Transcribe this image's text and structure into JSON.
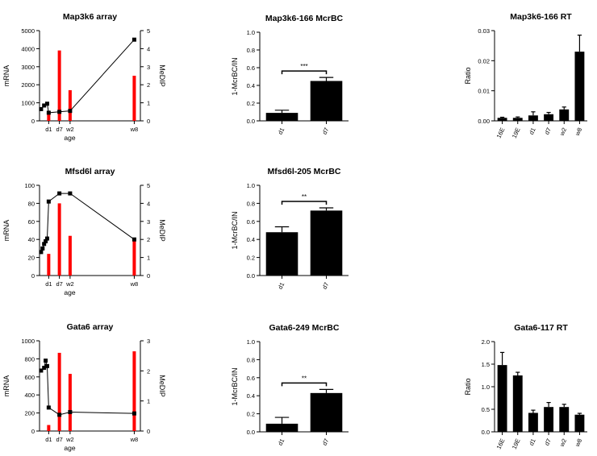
{
  "colors": {
    "bar": "#ff0000",
    "mark": "#000000",
    "line": "#000000"
  },
  "chart_data": [
    {
      "type": "bar+line",
      "title": "Map3k6 array",
      "xlabel": "age",
      "ylabel": "mRNA",
      "y2label": "MeDIP",
      "ylim": [
        0,
        5000
      ],
      "y2lim": [
        0,
        5
      ],
      "yticks": [
        "0",
        "1000",
        "2000",
        "3000",
        "4000",
        "5000"
      ],
      "y2ticks": [
        "0",
        "1",
        "2",
        "3",
        "4",
        "5"
      ],
      "xlim": [
        -6,
        60
      ],
      "xtick_values": [
        0,
        7,
        14,
        56
      ],
      "xtick_labels": [
        "d1",
        "d7",
        "w2",
        "w8"
      ],
      "bars": {
        "x": [
          0,
          7,
          14,
          56
        ],
        "values": [
          0.4,
          3.9,
          1.7,
          2.5
        ]
      },
      "line": {
        "x": [
          -5,
          -3,
          -1,
          0,
          7,
          14,
          56
        ],
        "values": [
          650,
          850,
          950,
          450,
          500,
          550,
          4500
        ]
      }
    },
    {
      "type": "bar",
      "title": "Map3k6-166 McrBC",
      "ylabel": "1-McrBC/IN",
      "ylim": [
        0,
        1.0
      ],
      "yticks": [
        "0.0",
        "0.2",
        "0.4",
        "0.6",
        "0.8",
        "1.0"
      ],
      "categories": [
        "d1",
        "d7"
      ],
      "values": [
        0.09,
        0.45
      ],
      "errors": [
        0.03,
        0.04
      ],
      "significance": "***"
    },
    {
      "type": "bar",
      "title": "Map3k6-166 RT",
      "ylabel": "Ratio",
      "ylim": [
        0,
        0.03
      ],
      "yticks": [
        "0.00",
        "0.01",
        "0.02",
        "0.03"
      ],
      "categories": [
        "16E",
        "19E",
        "d1",
        "d7",
        "w2",
        "w8"
      ],
      "values": [
        0.001,
        0.001,
        0.0018,
        0.0022,
        0.0038,
        0.023
      ],
      "errors": [
        0.0002,
        0.0003,
        0.0012,
        0.0006,
        0.0008,
        0.0055
      ]
    },
    {
      "type": "bar+line",
      "title": "Mfsd6l array",
      "xlabel": "age",
      "ylabel": "mRNA",
      "y2label": "MeDIP",
      "ylim": [
        0,
        100
      ],
      "y2lim": [
        0,
        5
      ],
      "yticks": [
        "0",
        "20",
        "40",
        "60",
        "80",
        "100"
      ],
      "y2ticks": [
        "0",
        "1",
        "2",
        "3",
        "4",
        "5"
      ],
      "xlim": [
        -6,
        60
      ],
      "xtick_values": [
        0,
        7,
        14,
        56
      ],
      "xtick_labels": [
        "d1",
        "d7",
        "w2",
        "w8"
      ],
      "bars": {
        "x": [
          0,
          7,
          14,
          56
        ],
        "values": [
          1.2,
          4.0,
          2.2,
          2.0
        ]
      },
      "line": {
        "x": [
          -5,
          -4,
          -3,
          -2,
          -1,
          0,
          7,
          14,
          56
        ],
        "values": [
          26,
          30,
          35,
          38,
          41,
          82,
          91,
          91,
          40
        ]
      }
    },
    {
      "type": "bar",
      "title": "Mfsd6l-205 McrBC",
      "ylabel": "1-McrBC/IN",
      "ylim": [
        0,
        1.0
      ],
      "yticks": [
        "0.0",
        "0.2",
        "0.4",
        "0.6",
        "0.8",
        "1.0"
      ],
      "categories": [
        "d1",
        "d7"
      ],
      "values": [
        0.48,
        0.72
      ],
      "errors": [
        0.06,
        0.03
      ],
      "significance": "**"
    },
    {
      "type": "bar+line",
      "title": "Gata6 array",
      "xlabel": "age",
      "ylabel": "mRNA",
      "y2label": "MeDIP",
      "ylim": [
        0,
        1000
      ],
      "y2lim": [
        0,
        3
      ],
      "yticks": [
        "0",
        "200",
        "400",
        "600",
        "800",
        "1000"
      ],
      "y2ticks": [
        "0",
        "1",
        "2",
        "3"
      ],
      "xlim": [
        -6,
        60
      ],
      "xtick_values": [
        0,
        7,
        14,
        56
      ],
      "xtick_labels": [
        "d1",
        "d7",
        "w8"
      ],
      "xtick_label_values": [
        0,
        7,
        56
      ],
      "extra_xtick_label": {
        "text": "w2",
        "x": 14
      },
      "bars": {
        "x": [
          0,
          7,
          14,
          56
        ],
        "values": [
          0.2,
          2.6,
          1.9,
          2.65
        ]
      },
      "line": {
        "x": [
          -5,
          -3,
          -2,
          -1,
          0,
          7,
          14,
          56
        ],
        "values": [
          670,
          700,
          780,
          720,
          260,
          180,
          210,
          195
        ]
      }
    },
    {
      "type": "bar",
      "title": "Gata6-249 McrBC",
      "ylabel": "1-McrBC/IN",
      "ylim": [
        0,
        1.0
      ],
      "yticks": [
        "0.0",
        "0.2",
        "0.4",
        "0.6",
        "0.8",
        "1.0"
      ],
      "categories": [
        "d1",
        "d7"
      ],
      "values": [
        0.09,
        0.43
      ],
      "errors": [
        0.07,
        0.04
      ],
      "significance": "**"
    },
    {
      "type": "bar",
      "title": "Gata6-117 RT",
      "ylabel": "Ratio",
      "ylim": [
        0,
        2.0
      ],
      "yticks": [
        "0.0",
        "0.5",
        "1.0",
        "1.5",
        "2.0"
      ],
      "categories": [
        "16E",
        "19E",
        "d1",
        "d7",
        "w2",
        "w8"
      ],
      "values": [
        1.48,
        1.25,
        0.42,
        0.55,
        0.55,
        0.38
      ],
      "errors": [
        0.28,
        0.07,
        0.06,
        0.1,
        0.06,
        0.03
      ]
    }
  ]
}
